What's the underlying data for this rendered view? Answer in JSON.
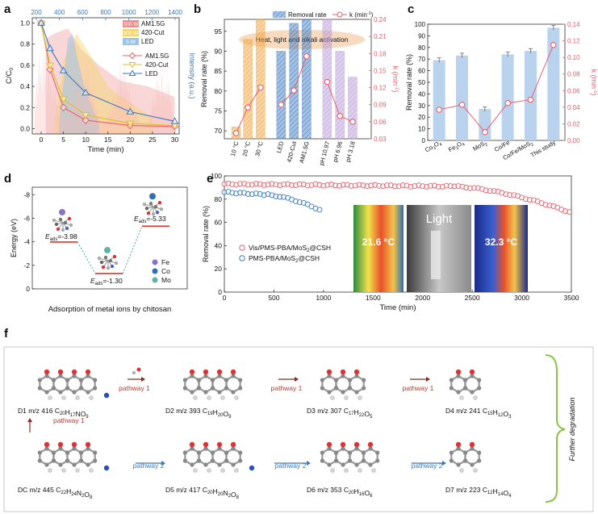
{
  "panel_labels": {
    "a": "a",
    "b": "b",
    "c": "c",
    "d": "d",
    "e": "e",
    "f": "f"
  },
  "colors": {
    "red": "#e8606a",
    "orange": "#f0a23c",
    "blue": "#3a78c2",
    "light_blue": "#9cc3ea",
    "purple": "#b79ad7",
    "green": "#8bc34a",
    "yellow": "#e0c020"
  },
  "chart_data": [
    {
      "id": "a",
      "type": "line",
      "xlabel": "Time (min)",
      "ylabel": "C/C",
      "ylabel_sub": "0",
      "y2label": "Intensity (a.u.)",
      "top_axis_ticks": [
        "200",
        "400",
        "600",
        "800",
        "1000",
        "1200",
        "1400"
      ],
      "xlim": [
        -2,
        31
      ],
      "ylim": [
        -0.05,
        1.05
      ],
      "xticks": [
        0,
        5,
        10,
        15,
        20,
        25,
        30
      ],
      "yticks": [
        0.0,
        0.2,
        0.4,
        0.6,
        0.8,
        1.0
      ],
      "x": [
        0,
        2,
        5,
        10,
        20,
        30
      ],
      "series": [
        {
          "name": "AM1.5G",
          "values": [
            1.0,
            0.56,
            0.2,
            0.08,
            0.03,
            0.02
          ],
          "color": "#e8606a",
          "marker": "diamond"
        },
        {
          "name": "420-Cut",
          "values": [
            1.0,
            0.6,
            0.28,
            0.13,
            0.05,
            0.03
          ],
          "color": "#e0c020",
          "marker": "triangle-down"
        },
        {
          "name": "LED",
          "values": [
            1.0,
            0.76,
            0.55,
            0.34,
            0.16,
            0.07
          ],
          "color": "#3a78c2",
          "marker": "triangle-up"
        }
      ],
      "lamp_legend": [
        {
          "power": "300 W",
          "name": "AM1.5G",
          "color": "#f28b8b"
        },
        {
          "power": "300 W",
          "name": "420-Cut",
          "color": "#f3d56a"
        },
        {
          "power": "5 W",
          "name": "LED",
          "color": "#9cc3ea"
        }
      ]
    },
    {
      "id": "b",
      "type": "bar",
      "ylabel": "Removal rate (%)",
      "y2label": "k (min",
      "y2label_sup": "-1",
      "y2label_end": ")",
      "ylim": [
        68,
        98
      ],
      "yticks": [
        70,
        75,
        80,
        85,
        90,
        95
      ],
      "y2lim": [
        0.03,
        0.24
      ],
      "y2ticks": [
        0.03,
        0.06,
        0.09,
        0.12,
        0.15,
        0.18,
        0.21,
        0.24
      ],
      "legend": [
        "Removal rate",
        "k (min",
        "-1",
        ")"
      ],
      "annotation": "Heat, light and alkali activation",
      "categories": [
        "10 °C",
        "20 °C",
        "30 °C",
        "LED",
        "420-Cut",
        "AM1.5G",
        "pH 10.97",
        "pH 6.96",
        "pH 3.18"
      ],
      "groups": [
        {
          "color": "#f0a23c",
          "indices": [
            0,
            1,
            2
          ]
        },
        {
          "color": "#3a78c2",
          "indices": [
            3,
            4,
            5
          ]
        },
        {
          "color": "#b79ad7",
          "indices": [
            6,
            7,
            8
          ]
        }
      ],
      "removal": [
        71,
        93,
        98,
        90,
        97,
        100,
        98,
        90,
        83.5
      ],
      "k": [
        0.04,
        0.085,
        0.12,
        0.09,
        0.115,
        0.175,
        0.13,
        0.07,
        0.06
      ]
    },
    {
      "id": "c",
      "type": "bar",
      "ylabel": "Removal rate (%)",
      "y2label": "k (min",
      "y2label_sup": "-1",
      "y2label_end": ")",
      "ylim": [
        0,
        100
      ],
      "yticks": [
        0,
        10,
        20,
        30,
        40,
        50,
        60,
        70,
        80,
        90,
        100
      ],
      "y2lim": [
        0,
        0.14
      ],
      "y2ticks": [
        0.0,
        0.02,
        0.04,
        0.06,
        0.08,
        0.1,
        0.12,
        0.14
      ],
      "categories": [
        {
          "main": "Co",
          "sub": "3",
          "rest": "O",
          "sub2": "4"
        },
        {
          "main": "Fe",
          "sub": "3",
          "rest": "O",
          "sub2": "4"
        },
        {
          "main": "MoS",
          "sub": "2",
          "rest": "",
          "sub2": ""
        },
        {
          "main": "Co/Fe",
          "sub": "",
          "rest": "",
          "sub2": ""
        },
        {
          "main": "Co/Fe/MoS",
          "sub": "2",
          "rest": "",
          "sub2": ""
        },
        {
          "main": "This study",
          "sub": "",
          "rest": "",
          "sub2": ""
        }
      ],
      "removal": [
        69,
        73,
        27,
        74,
        77,
        97
      ],
      "k": [
        0.037,
        0.043,
        0.01,
        0.045,
        0.049,
        0.115
      ]
    },
    {
      "id": "d",
      "type": "diagram",
      "ylabel": "Energy (eV)",
      "ylim": [
        -8.5,
        0
      ],
      "yticks": [
        -8,
        -6,
        -4,
        -2,
        0
      ],
      "levels": [
        {
          "label": "E",
          "label_sub": "ads",
          "value_text": "=-3.98",
          "energy": -3.98
        },
        {
          "label": "E",
          "label_sub": "ads",
          "value_text": "=-1.30",
          "energy": -1.3
        },
        {
          "label": "E",
          "label_sub": "ads",
          "value_text": "=-5.33",
          "energy": -5.33
        }
      ],
      "legend": [
        {
          "name": "Fe",
          "color": "#8a72c8"
        },
        {
          "name": "Co",
          "color": "#2f6fb3"
        },
        {
          "name": "Mo",
          "color": "#5fb3a8"
        }
      ],
      "caption": "Adsorption of metal ions by chitosan"
    },
    {
      "id": "e",
      "type": "scatter",
      "xlabel": "Time (min)",
      "ylabel": "Removal rate (%)",
      "xlim": [
        0,
        3500
      ],
      "ylim": [
        0,
        100
      ],
      "xticks": [
        0,
        500,
        1000,
        1500,
        2000,
        2500,
        3000,
        3500
      ],
      "yticks": [
        0,
        20,
        40,
        60,
        80,
        100
      ],
      "series": [
        {
          "name": "Vis/PMS-PBA/MoS",
          "name_sub": "2",
          "name_end": "@CSH",
          "color": "#e8606a",
          "x_range": [
            0,
            3480
          ],
          "start": 93,
          "end": 69,
          "plateau_end": 2300,
          "plateau": 91
        },
        {
          "name": "PMS-PBA/MoS",
          "name_sub": "2",
          "name_end": "@CSH",
          "color": "#3a78c2",
          "x_range": [
            0,
            960
          ],
          "start": 86,
          "end": 71,
          "plateau_end": 400,
          "plateau": 84
        }
      ],
      "inset_labels": [
        "21.6 °C",
        "Light",
        "32.3 °C"
      ]
    },
    {
      "id": "f",
      "type": "diagram",
      "side_label": "Further degradation",
      "pathway1": "pathway 1",
      "pathway2": "pathway 2",
      "molecules": [
        {
          "code": "D1",
          "mz": "m/z 416",
          "formula": [
            [
              "C",
              "20"
            ],
            [
              "H",
              "17"
            ],
            [
              "NO",
              "9"
            ]
          ]
        },
        {
          "code": "D2",
          "mz": "m/z 393",
          "formula": [
            [
              "C",
              "19"
            ],
            [
              "H",
              "20"
            ],
            [
              "O",
              "9"
            ]
          ]
        },
        {
          "code": "D3",
          "mz": "m/z 307",
          "formula": [
            [
              "C",
              "17"
            ],
            [
              "H",
              "22"
            ],
            [
              "O",
              "5"
            ]
          ]
        },
        {
          "code": "D4",
          "mz": "m/z 241",
          "formula": [
            [
              "C",
              "15"
            ],
            [
              "H",
              "12"
            ],
            [
              "O",
              "3"
            ]
          ]
        },
        {
          "code": "DC",
          "mz": "m/z 445",
          "formula": [
            [
              "C",
              "22"
            ],
            [
              "H",
              "24"
            ],
            [
              "N",
              "2"
            ],
            [
              "O",
              "8"
            ]
          ]
        },
        {
          "code": "D5",
          "mz": "m/z 417",
          "formula": [
            [
              "C",
              "20"
            ],
            [
              "H",
              "20"
            ],
            [
              "N",
              "2"
            ],
            [
              "O",
              "8"
            ]
          ]
        },
        {
          "code": "D6",
          "mz": "m/z 353",
          "formula": [
            [
              "C",
              "20"
            ],
            [
              "H",
              "16"
            ],
            [
              "O",
              "6"
            ]
          ]
        },
        {
          "code": "D7",
          "mz": "m/z 223",
          "formula": [
            [
              "C",
              "12"
            ],
            [
              "H",
              "14"
            ],
            [
              "O",
              "4"
            ]
          ]
        }
      ]
    }
  ]
}
